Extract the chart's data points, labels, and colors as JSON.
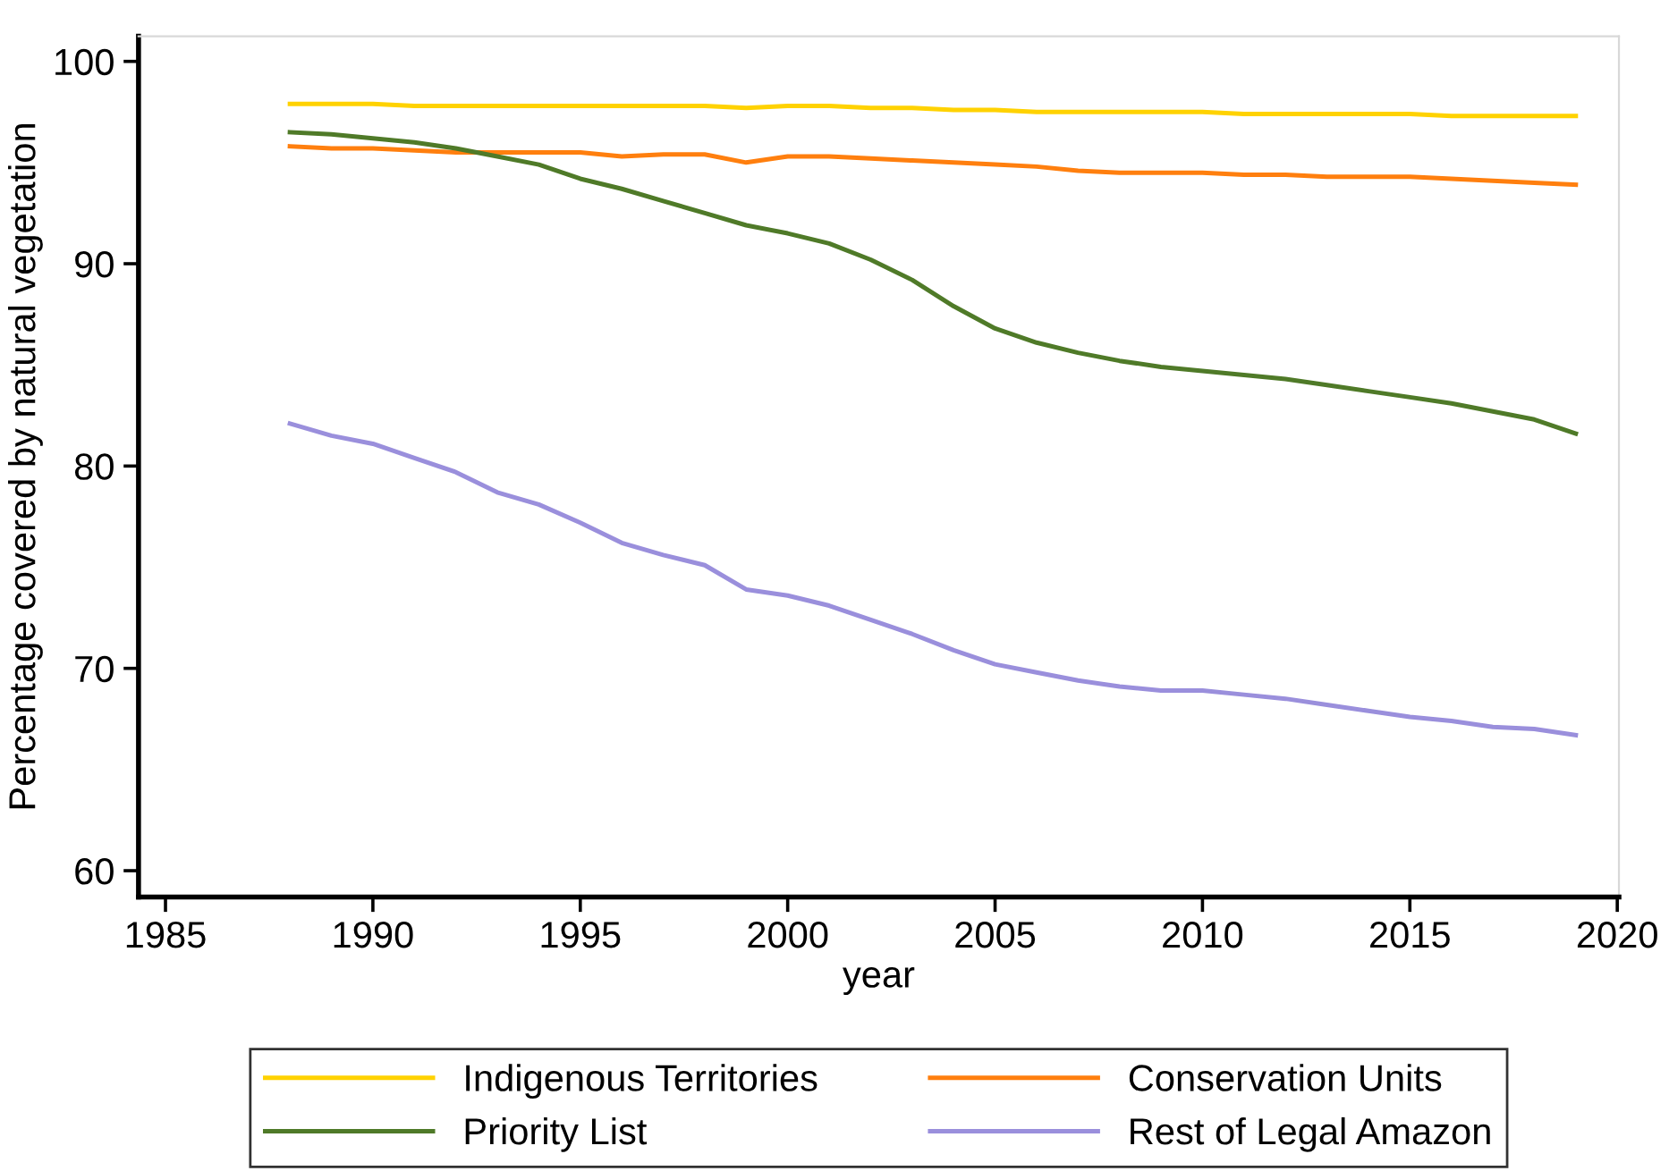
{
  "chart_data": {
    "type": "line",
    "xlabel": "year",
    "ylabel": "Percentage covered by natural vegetation",
    "x": [
      1988,
      1989,
      1990,
      1991,
      1992,
      1993,
      1994,
      1995,
      1996,
      1997,
      1998,
      1999,
      2000,
      2001,
      2002,
      2003,
      2004,
      2005,
      2006,
      2007,
      2008,
      2009,
      2010,
      2011,
      2012,
      2013,
      2014,
      2015,
      2016,
      2017,
      2018,
      2019
    ],
    "series": [
      {
        "name": "Indigenous Territories",
        "color": "#ffd200",
        "values": [
          97.9,
          97.9,
          97.9,
          97.8,
          97.8,
          97.8,
          97.8,
          97.8,
          97.8,
          97.8,
          97.8,
          97.7,
          97.8,
          97.8,
          97.7,
          97.7,
          97.6,
          97.6,
          97.5,
          97.5,
          97.5,
          97.5,
          97.5,
          97.4,
          97.4,
          97.4,
          97.4,
          97.4,
          97.3,
          97.3,
          97.3,
          97.3
        ]
      },
      {
        "name": "Conservation Units",
        "color": "#ff7f0e",
        "values": [
          95.8,
          95.7,
          95.7,
          95.6,
          95.5,
          95.5,
          95.5,
          95.5,
          95.3,
          95.4,
          95.4,
          95.0,
          95.3,
          95.3,
          95.2,
          95.1,
          95.0,
          94.9,
          94.8,
          94.6,
          94.5,
          94.5,
          94.5,
          94.4,
          94.4,
          94.3,
          94.3,
          94.3,
          94.2,
          94.1,
          94.0,
          93.9
        ]
      },
      {
        "name": "Priority List",
        "color": "#4f7a28",
        "values": [
          96.5,
          96.4,
          96.2,
          96.0,
          95.7,
          95.3,
          94.9,
          94.2,
          93.7,
          93.1,
          92.5,
          91.9,
          91.5,
          91.0,
          90.2,
          89.2,
          87.9,
          86.8,
          86.1,
          85.6,
          85.2,
          84.9,
          84.7,
          84.5,
          84.3,
          84.0,
          83.7,
          83.4,
          83.1,
          82.7,
          82.3,
          81.6
        ]
      },
      {
        "name": "Rest of Legal Amazon",
        "color": "#9a8fdc",
        "values": [
          82.1,
          81.5,
          81.1,
          80.4,
          79.7,
          78.7,
          78.1,
          77.2,
          76.2,
          75.6,
          75.1,
          73.9,
          73.6,
          73.1,
          72.4,
          71.7,
          70.9,
          70.2,
          69.8,
          69.4,
          69.1,
          68.9,
          68.9,
          68.7,
          68.5,
          68.2,
          67.9,
          67.6,
          67.4,
          67.1,
          67.0,
          66.7
        ]
      }
    ],
    "xlim": [
      1984.35,
      2020.04
    ],
    "ylim": [
      58.7,
      101.24
    ],
    "xticks": [
      1985,
      1990,
      1995,
      2000,
      2005,
      2010,
      2015,
      2020
    ],
    "yticks": [
      60,
      70,
      80,
      90,
      100
    ],
    "grid": false,
    "legend": "bottom",
    "marker": "none",
    "line_style": "solid"
  }
}
